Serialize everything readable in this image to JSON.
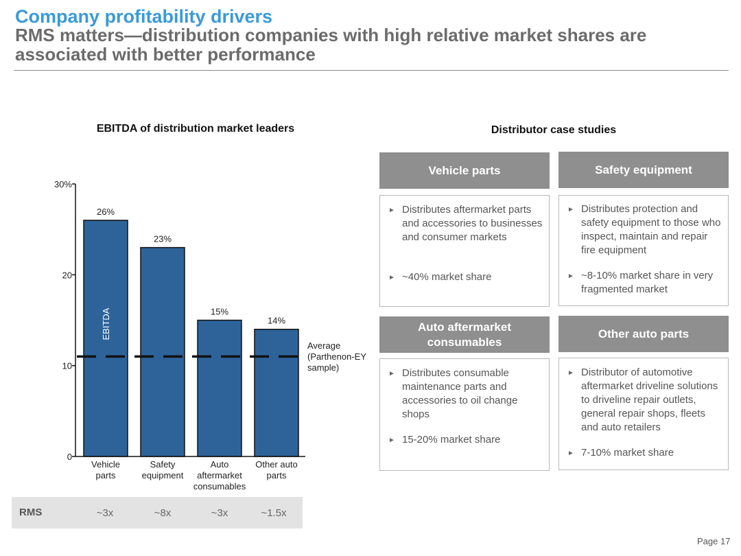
{
  "header": {
    "title": "Company profitability drivers",
    "subtitle": "RMS matters—distribution companies with high relative market shares are associated with better performance"
  },
  "chart_data": {
    "type": "bar",
    "title": "EBITDA of distribution market leaders",
    "ylabel": "EBITDA",
    "xlabel": "",
    "categories": [
      "Vehicle parts",
      "Safety equipment",
      "Auto aftermarket consumables",
      "Other auto parts"
    ],
    "values": [
      26,
      23,
      15,
      14
    ],
    "value_labels": [
      "26%",
      "23%",
      "15%",
      "14%"
    ],
    "ylim": [
      0,
      30
    ],
    "yticks": [
      0,
      10,
      20,
      30
    ],
    "ytick_labels": [
      "0",
      "10",
      "20",
      "30%"
    ],
    "bar_color": "#2d6399",
    "average_line": {
      "value": 11,
      "label": "Average (Parthenon-EY sample)"
    },
    "grid": false
  },
  "rms": {
    "label": "RMS",
    "values": [
      "~3x",
      "~8x",
      "~3x",
      "~1.5x"
    ]
  },
  "cases": {
    "title": "Distributor case studies",
    "items": [
      {
        "header": "Vehicle parts",
        "bullets": [
          "Distributes aftermarket parts and accessories to businesses and consumer markets",
          "~40% market share"
        ]
      },
      {
        "header": "Safety equipment",
        "bullets": [
          "Distributes protection and safety equipment to those who inspect, maintain and repair fire equipment",
          "~8-10% market share in very fragmented market"
        ]
      },
      {
        "header": "Auto aftermarket consumables",
        "bullets": [
          "Distributes consumable maintenance parts and accessories to oil change shops",
          "15-20% market share"
        ]
      },
      {
        "header": "Other auto parts",
        "bullets": [
          "Distributor of automotive aftermarket driveline solutions to driveline repair outlets, general repair shops, fleets and auto retailers",
          "7-10% market share"
        ]
      }
    ]
  },
  "bullet_icon": "triangle-right-icon",
  "header_color": "#8f8f8f",
  "title_color": "#3a9ad9",
  "page": "Page 17"
}
